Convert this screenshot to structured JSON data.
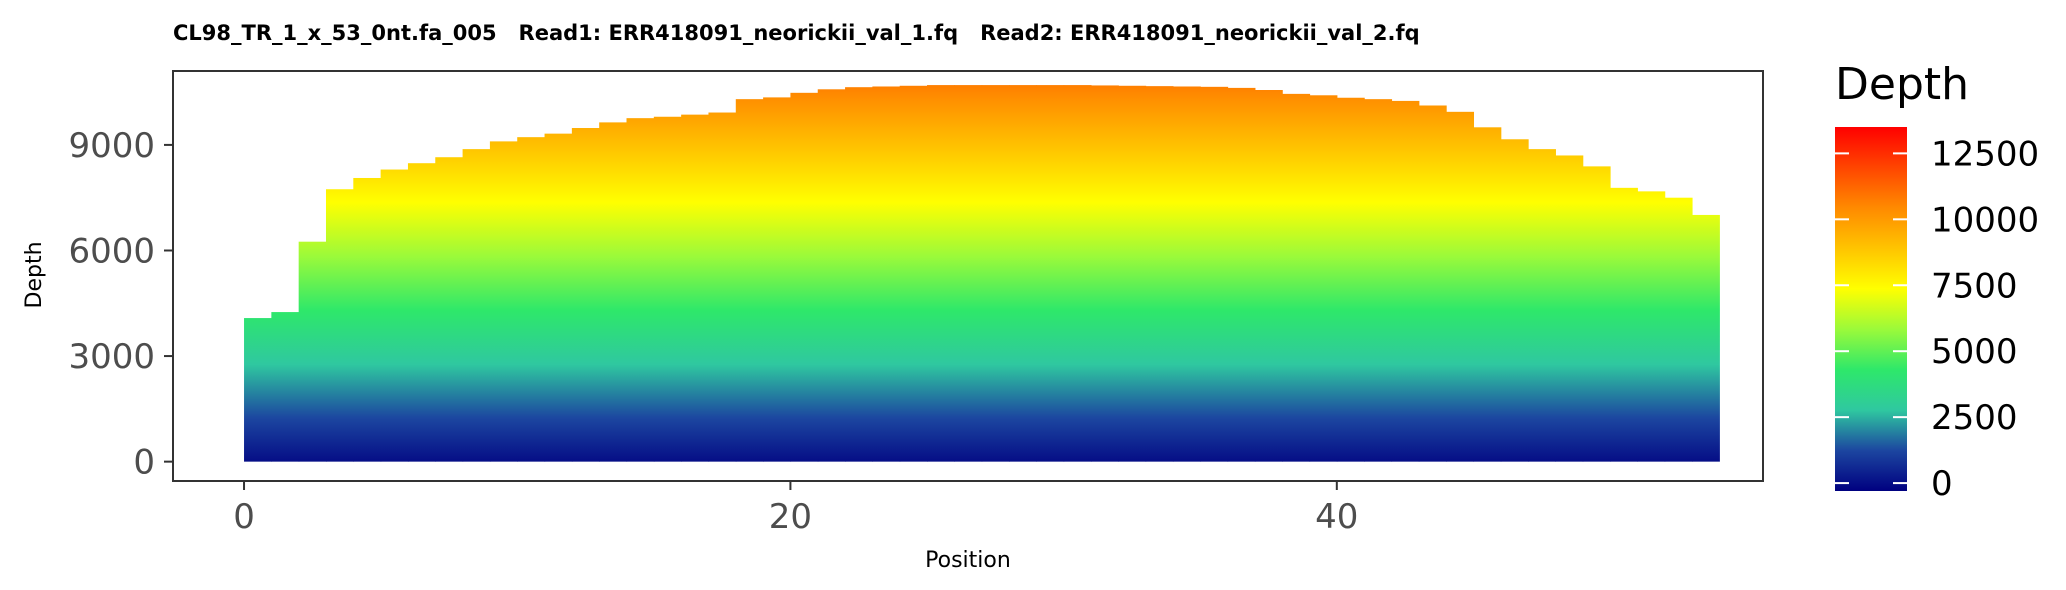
{
  "chart_data": {
    "type": "bar",
    "title": "CL98_TR_1_x_53_0nt.fa_005   Read1: ERR418091_neorickii_val_1.fq   Read2: ERR418091_neorickii_val_2.fq",
    "xlabel": "Position",
    "ylabel": "Depth",
    "xlim": [
      -2.6,
      55.6
    ],
    "ylim": [
      -550,
      11100
    ],
    "xticks": [
      0,
      20,
      40
    ],
    "yticks": [
      0,
      3000,
      6000,
      9000
    ],
    "x": [
      0,
      1,
      2,
      3,
      4,
      5,
      6,
      7,
      8,
      9,
      10,
      11,
      12,
      13,
      14,
      15,
      16,
      17,
      18,
      19,
      20,
      21,
      22,
      23,
      24,
      25,
      26,
      27,
      28,
      29,
      30,
      31,
      32,
      33,
      34,
      35,
      36,
      37,
      38,
      39,
      40,
      41,
      42,
      43,
      44,
      45,
      46,
      47,
      48,
      49,
      50,
      51,
      52,
      53
    ],
    "values": [
      4080,
      4250,
      6250,
      7740,
      8060,
      8300,
      8480,
      8650,
      8880,
      9100,
      9220,
      9320,
      9480,
      9640,
      9760,
      9800,
      9860,
      9920,
      10300,
      10350,
      10480,
      10580,
      10640,
      10660,
      10680,
      10700,
      10700,
      10700,
      10700,
      10700,
      10700,
      10690,
      10680,
      10670,
      10660,
      10650,
      10620,
      10560,
      10450,
      10410,
      10340,
      10300,
      10250,
      10120,
      9940,
      9500,
      9160,
      8880,
      8700,
      8390,
      7780,
      7680,
      7500,
      7010
    ],
    "legend": {
      "title": "Depth",
      "position": "right",
      "type": "colorbar",
      "range": [
        -300,
        13500
      ],
      "breaks": [
        0,
        2500,
        5000,
        7500,
        10000,
        12500
      ],
      "labels": [
        "0",
        "2500",
        "5000",
        "7500",
        "10000",
        "12500"
      ]
    },
    "fill_scale_colors": [
      "#000080",
      "#1c46a0",
      "#2fc8a0",
      "#2ee86a",
      "#9bfa3a",
      "#ffff00",
      "#ffc400",
      "#ff8a00",
      "#ff4500",
      "#ff0000"
    ],
    "grid": false,
    "panel_border": true
  }
}
